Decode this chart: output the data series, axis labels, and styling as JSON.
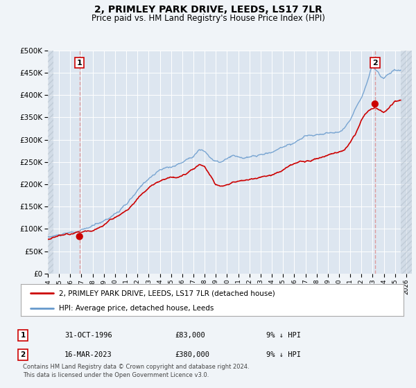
{
  "title": "2, PRIMLEY PARK DRIVE, LEEDS, LS17 7LR",
  "subtitle": "Price paid vs. HM Land Registry's House Price Index (HPI)",
  "legend_label_red": "2, PRIMLEY PARK DRIVE, LEEDS, LS17 7LR (detached house)",
  "legend_label_blue": "HPI: Average price, detached house, Leeds",
  "footnote": "Contains HM Land Registry data © Crown copyright and database right 2024.\nThis data is licensed under the Open Government Licence v3.0.",
  "table_row1": [
    "1",
    "31-OCT-1996",
    "£83,000",
    "9% ↓ HPI"
  ],
  "table_row2": [
    "2",
    "16-MAR-2023",
    "£380,000",
    "9% ↓ HPI"
  ],
  "sale1_year": 1996.83,
  "sale1_price": 83000,
  "sale2_year": 2023.21,
  "sale2_price": 380000,
  "background_color": "#f0f4f8",
  "plot_bg_color": "#dde6f0",
  "grid_color": "#ffffff",
  "red_color": "#cc0000",
  "blue_color": "#6699cc",
  "vline_color": "#dd8888",
  "marker_color": "#cc0000",
  "ylim": [
    0,
    500000
  ],
  "xlim_start": 1994.0,
  "xlim_end": 2026.5,
  "ytick_step": 50000,
  "xticks": [
    1994,
    1995,
    1996,
    1997,
    1998,
    1999,
    2000,
    2001,
    2002,
    2003,
    2004,
    2005,
    2006,
    2007,
    2008,
    2009,
    2010,
    2011,
    2012,
    2013,
    2014,
    2015,
    2016,
    2017,
    2018,
    2019,
    2020,
    2021,
    2022,
    2023,
    2024,
    2025,
    2026
  ]
}
